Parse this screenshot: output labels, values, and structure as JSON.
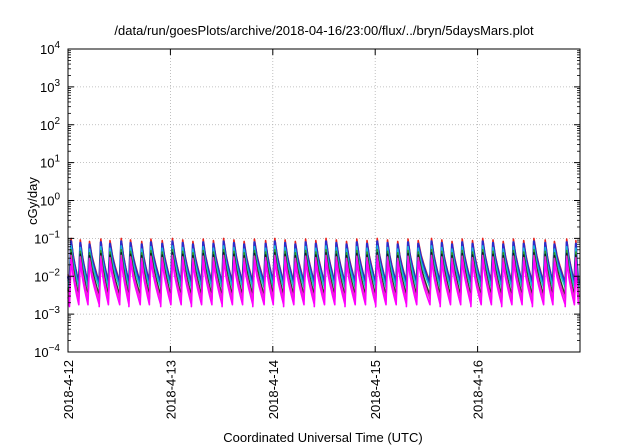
{
  "chart_data": {
    "type": "line",
    "title": "/data/run/goesPlots/archive/2018-04-16/23:00/flux/../bryn/5daysMars.plot",
    "xlabel": "Coordinated Universal Time (UTC)",
    "ylabel": "cGy/day",
    "y_scale": "log",
    "ylim_exp": [
      -4,
      4
    ],
    "y_tick_exponents": [
      -4,
      -3,
      -2,
      -1,
      0,
      1,
      2,
      3,
      4
    ],
    "y_tick_base": "10",
    "xlim_days": [
      0,
      5
    ],
    "x_tick_labels": [
      "2018-4-12",
      "2018-4-13",
      "2018-4-14",
      "2018-4-15",
      "2018-4-16"
    ],
    "x_tick_days": [
      0,
      1,
      2,
      3,
      4
    ],
    "grid": true,
    "peak_days": [
      0.03,
      0.12,
      0.21,
      0.32,
      0.41,
      0.52,
      0.61,
      0.72,
      0.81,
      0.92,
      1.02,
      1.12,
      1.22,
      1.32,
      1.42,
      1.52,
      1.62,
      1.72,
      1.82,
      1.93,
      2.02,
      2.12,
      2.22,
      2.32,
      2.42,
      2.52,
      2.62,
      2.72,
      2.82,
      2.92,
      3.02,
      3.12,
      3.22,
      3.32,
      3.42,
      3.55,
      3.65,
      3.75,
      3.85,
      3.95,
      4.05,
      4.15,
      4.25,
      4.35,
      4.45,
      4.55,
      4.66,
      4.75,
      4.87,
      4.96
    ],
    "series": [
      {
        "color": "#e8221f",
        "peak_log": -1.0,
        "trough_log": -2.15
      },
      {
        "color": "#2b2bcc",
        "peak_log": -1.08,
        "trough_log": -2.2
      },
      {
        "color": "#19b8d6",
        "peak_log": -1.2,
        "trough_log": -2.3
      },
      {
        "color": "#2a9a2a",
        "peak_log": -1.3,
        "trough_log": -2.5
      },
      {
        "color": "#1a1a1a",
        "peak_log": -1.38,
        "trough_log": -2.55
      },
      {
        "color": "#e52ccb",
        "peak_log": -1.45,
        "trough_log": -2.6
      },
      {
        "color": "#ff00ff",
        "peak_log": -1.55,
        "trough_log": -2.75
      }
    ]
  }
}
